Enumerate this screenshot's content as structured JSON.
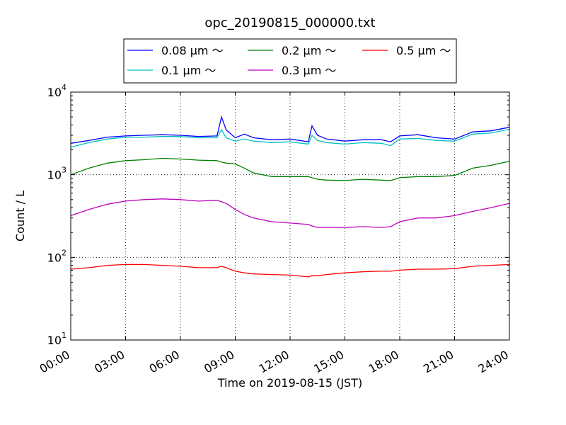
{
  "chart_data": {
    "type": "line",
    "title": "opc_20190815_000000.txt",
    "xlabel": "Time on 2019-08-15 (JST)",
    "ylabel": "Count / L",
    "yscale": "log",
    "ylim": [
      10,
      10000
    ],
    "xlim": [
      "00:00",
      "24:00"
    ],
    "x_ticks": [
      "00:00",
      "03:00",
      "06:00",
      "09:00",
      "12:00",
      "15:00",
      "18:00",
      "21:00",
      "24:00"
    ],
    "y_ticks": [
      {
        "base": "10",
        "exp": "1"
      },
      {
        "base": "10",
        "exp": "2"
      },
      {
        "base": "10",
        "exp": "3"
      },
      {
        "base": "10",
        "exp": "4"
      }
    ],
    "grid": true,
    "legend_placement": "top-center",
    "x_hours": [
      0,
      1,
      2,
      3,
      4,
      5,
      6,
      7,
      8,
      8.25,
      8.5,
      9,
      9.5,
      10,
      11,
      12,
      13,
      13.2,
      13.5,
      14,
      15,
      16,
      17,
      17.5,
      18,
      19,
      20,
      21,
      22,
      23,
      24
    ],
    "series": [
      {
        "name": "0.08 μm ～",
        "color": "#0000ff",
        "values": [
          2400,
          2600,
          2850,
          2950,
          3000,
          3050,
          3000,
          2900,
          2950,
          5000,
          3500,
          2800,
          3100,
          2800,
          2650,
          2700,
          2500,
          3900,
          3000,
          2700,
          2550,
          2650,
          2650,
          2500,
          2950,
          3050,
          2800,
          2700,
          3300,
          3400,
          3750
        ]
      },
      {
        "name": "0.1 μm ～",
        "color": "#00bfbf",
        "values": [
          2150,
          2450,
          2700,
          2850,
          2850,
          2900,
          2900,
          2800,
          2800,
          3500,
          2800,
          2550,
          2700,
          2550,
          2450,
          2500,
          2350,
          3000,
          2600,
          2450,
          2350,
          2450,
          2400,
          2250,
          2700,
          2750,
          2600,
          2550,
          3100,
          3200,
          3550
        ]
      },
      {
        "name": "0.2 μm ～",
        "color": "#008000",
        "values": [
          1000,
          1200,
          1380,
          1480,
          1520,
          1580,
          1550,
          1500,
          1480,
          1420,
          1380,
          1350,
          1200,
          1050,
          950,
          950,
          950,
          920,
          880,
          860,
          850,
          880,
          860,
          850,
          920,
          950,
          950,
          980,
          1200,
          1300,
          1450
        ]
      },
      {
        "name": "0.3 μm ～",
        "color": "#bf00bf",
        "values": [
          320,
          380,
          440,
          480,
          500,
          510,
          500,
          480,
          490,
          470,
          450,
          380,
          330,
          300,
          270,
          260,
          250,
          240,
          230,
          230,
          230,
          235,
          230,
          235,
          270,
          300,
          300,
          320,
          360,
          400,
          450
        ]
      },
      {
        "name": "0.5 μm ～",
        "color": "#ff0000",
        "values": [
          72,
          75,
          80,
          82,
          82,
          80,
          78,
          75,
          75,
          78,
          75,
          68,
          65,
          63,
          62,
          61,
          58,
          60,
          60,
          62,
          65,
          67,
          68,
          68,
          70,
          72,
          72,
          73,
          78,
          80,
          82
        ]
      }
    ]
  }
}
